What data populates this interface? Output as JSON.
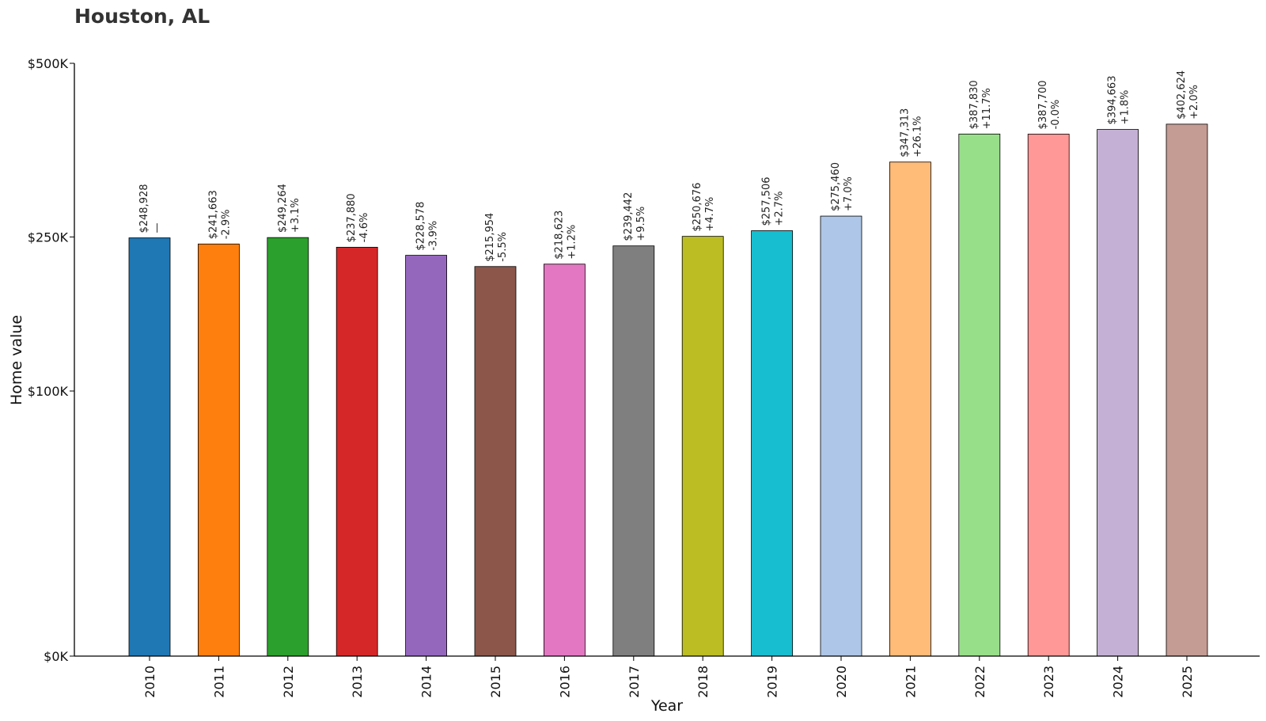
{
  "chart_data": {
    "type": "bar",
    "title": "Houston, AL",
    "xlabel": "Year",
    "ylabel": "Home value",
    "ylim": [
      0,
      500000
    ],
    "y_scale": "sqrt",
    "y_ticks": [
      {
        "value": 0,
        "label": "$0K"
      },
      {
        "value": 100000,
        "label": "$100K"
      },
      {
        "value": 250000,
        "label": "$250K"
      },
      {
        "value": 500000,
        "label": "$500K"
      }
    ],
    "grid": false,
    "categories": [
      "2010",
      "2011",
      "2012",
      "2013",
      "2014",
      "2015",
      "2016",
      "2017",
      "2018",
      "2019",
      "2020",
      "2021",
      "2022",
      "2023",
      "2024",
      "2025"
    ],
    "values": [
      248928,
      241663,
      249264,
      237880,
      228578,
      215954,
      218623,
      239442,
      250676,
      257506,
      275460,
      347313,
      387830,
      387700,
      394663,
      402624
    ],
    "value_labels": [
      "$248,928",
      "$241,663",
      "$249,264",
      "$237,880",
      "$228,578",
      "$215,954",
      "$218,623",
      "$239,442",
      "$250,676",
      "$257,506",
      "$275,460",
      "$347,313",
      "$387,830",
      "$387,700",
      "$394,663",
      "$402,624"
    ],
    "change_labels": [
      "—",
      "-2.9%",
      "+3.1%",
      "-4.6%",
      "-3.9%",
      "-5.5%",
      "+1.2%",
      "+9.5%",
      "+4.7%",
      "+2.7%",
      "+7.0%",
      "+26.1%",
      "+11.7%",
      "-0.0%",
      "+1.8%",
      "+2.0%"
    ],
    "colors": [
      "#1f77b4",
      "#ff7f0e",
      "#2ca02c",
      "#d62728",
      "#9467bd",
      "#8c564b",
      "#e377c2",
      "#7f7f7f",
      "#bcbd22",
      "#17becf",
      "#aec7e8",
      "#ffbb78",
      "#98df8a",
      "#ff9896",
      "#c5b0d5",
      "#c49c94"
    ]
  }
}
